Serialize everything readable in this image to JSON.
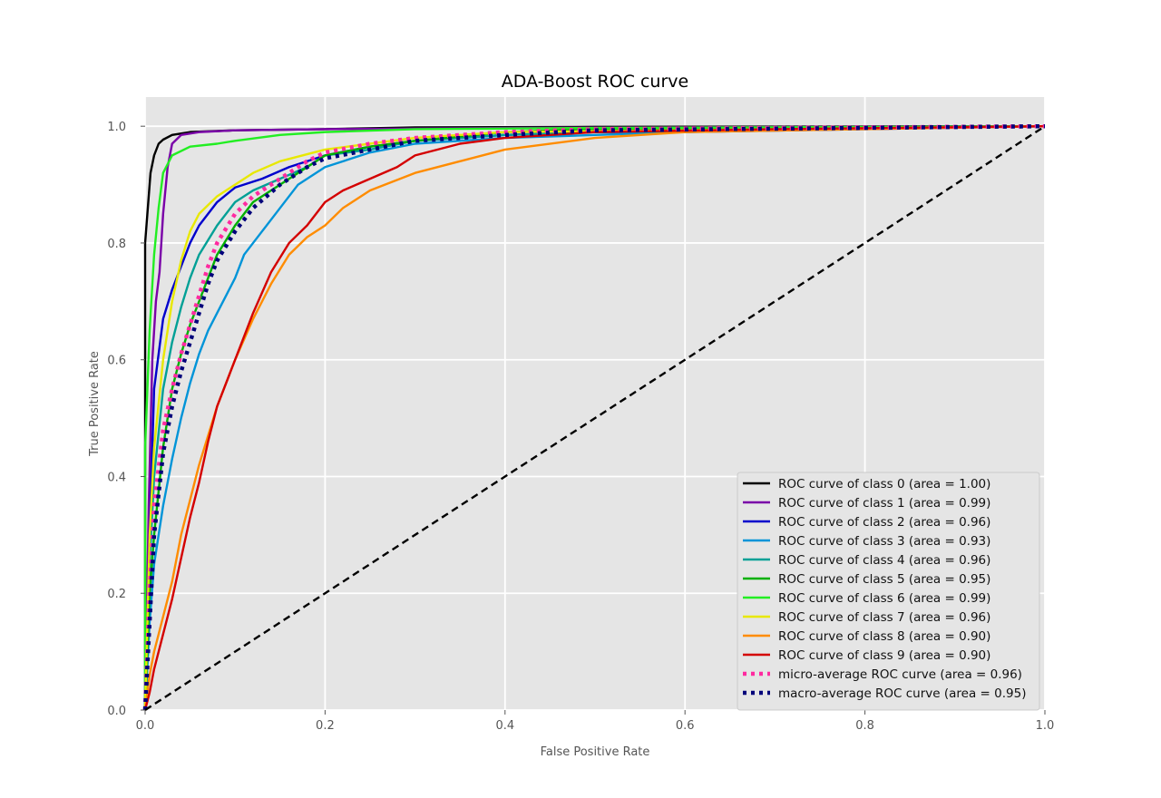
{
  "chart_data": {
    "type": "line",
    "title": "ADA-Boost ROC curve",
    "xlabel": "False Positive Rate",
    "ylabel": "True Positive Rate",
    "xlim": [
      0,
      1
    ],
    "ylim": [
      0,
      1.05
    ],
    "xticks": [
      "0.0",
      "0.2",
      "0.4",
      "0.6",
      "0.8",
      "1.0"
    ],
    "yticks": [
      "0.0",
      "0.2",
      "0.4",
      "0.6",
      "0.8",
      "1.0"
    ],
    "grid": true,
    "legend_position": "lower-right",
    "background": "#e5e5e5",
    "series": [
      {
        "name": "ROC curve of class 0 (area = 1.00)",
        "color": "#000000",
        "style": "solid",
        "points": [
          [
            0,
            0
          ],
          [
            0,
            0.8
          ],
          [
            0.003,
            0.86
          ],
          [
            0.006,
            0.92
          ],
          [
            0.01,
            0.95
          ],
          [
            0.015,
            0.97
          ],
          [
            0.02,
            0.977
          ],
          [
            0.03,
            0.985
          ],
          [
            0.05,
            0.99
          ],
          [
            0.1,
            0.993
          ],
          [
            0.2,
            0.995
          ],
          [
            0.3,
            0.998
          ],
          [
            0.5,
            0.999
          ],
          [
            1,
            1
          ]
        ]
      },
      {
        "name": "ROC curve of class 1 (area = 0.99)",
        "color": "#7a00a8",
        "style": "solid",
        "points": [
          [
            0,
            0
          ],
          [
            0.004,
            0.35
          ],
          [
            0.008,
            0.6
          ],
          [
            0.012,
            0.7
          ],
          [
            0.016,
            0.75
          ],
          [
            0.02,
            0.85
          ],
          [
            0.025,
            0.93
          ],
          [
            0.03,
            0.97
          ],
          [
            0.04,
            0.985
          ],
          [
            0.06,
            0.99
          ],
          [
            0.1,
            0.993
          ],
          [
            0.2,
            0.995
          ],
          [
            0.4,
            0.997
          ],
          [
            0.6,
            0.998
          ],
          [
            1,
            1
          ]
        ]
      },
      {
        "name": "ROC curve of class 2 (area = 0.96)",
        "color": "#0000cc",
        "style": "solid",
        "points": [
          [
            0,
            0
          ],
          [
            0.005,
            0.3
          ],
          [
            0.01,
            0.55
          ],
          [
            0.02,
            0.67
          ],
          [
            0.03,
            0.72
          ],
          [
            0.04,
            0.76
          ],
          [
            0.05,
            0.8
          ],
          [
            0.06,
            0.83
          ],
          [
            0.08,
            0.87
          ],
          [
            0.1,
            0.895
          ],
          [
            0.13,
            0.91
          ],
          [
            0.16,
            0.93
          ],
          [
            0.2,
            0.95
          ],
          [
            0.25,
            0.965
          ],
          [
            0.3,
            0.975
          ],
          [
            0.4,
            0.985
          ],
          [
            0.5,
            0.99
          ],
          [
            0.6,
            0.99
          ],
          [
            0.8,
            0.995
          ],
          [
            1,
            1
          ]
        ]
      },
      {
        "name": "ROC curve of class 3 (area = 0.93)",
        "color": "#0094d8",
        "style": "solid",
        "points": [
          [
            0,
            0
          ],
          [
            0.005,
            0.15
          ],
          [
            0.01,
            0.25
          ],
          [
            0.02,
            0.35
          ],
          [
            0.03,
            0.43
          ],
          [
            0.04,
            0.5
          ],
          [
            0.05,
            0.56
          ],
          [
            0.06,
            0.61
          ],
          [
            0.07,
            0.65
          ],
          [
            0.08,
            0.68
          ],
          [
            0.09,
            0.71
          ],
          [
            0.1,
            0.74
          ],
          [
            0.11,
            0.78
          ],
          [
            0.13,
            0.82
          ],
          [
            0.15,
            0.86
          ],
          [
            0.17,
            0.9
          ],
          [
            0.2,
            0.93
          ],
          [
            0.25,
            0.955
          ],
          [
            0.3,
            0.97
          ],
          [
            0.4,
            0.98
          ],
          [
            0.5,
            0.985
          ],
          [
            0.7,
            0.995
          ],
          [
            1,
            1
          ]
        ]
      },
      {
        "name": "ROC curve of class 4 (area = 0.96)",
        "color": "#00a096",
        "style": "solid",
        "points": [
          [
            0,
            0
          ],
          [
            0.005,
            0.25
          ],
          [
            0.01,
            0.4
          ],
          [
            0.02,
            0.55
          ],
          [
            0.03,
            0.63
          ],
          [
            0.04,
            0.69
          ],
          [
            0.05,
            0.74
          ],
          [
            0.06,
            0.78
          ],
          [
            0.08,
            0.83
          ],
          [
            0.1,
            0.87
          ],
          [
            0.12,
            0.89
          ],
          [
            0.15,
            0.91
          ],
          [
            0.18,
            0.93
          ],
          [
            0.2,
            0.95
          ],
          [
            0.25,
            0.96
          ],
          [
            0.3,
            0.975
          ],
          [
            0.4,
            0.985
          ],
          [
            0.5,
            0.99
          ],
          [
            1,
            1
          ]
        ]
      },
      {
        "name": "ROC curve of class 5 (area = 0.95)",
        "color": "#00b000",
        "style": "solid",
        "points": [
          [
            0,
            0
          ],
          [
            0.005,
            0.2
          ],
          [
            0.01,
            0.3
          ],
          [
            0.02,
            0.45
          ],
          [
            0.03,
            0.55
          ],
          [
            0.04,
            0.61
          ],
          [
            0.05,
            0.66
          ],
          [
            0.06,
            0.7
          ],
          [
            0.07,
            0.74
          ],
          [
            0.08,
            0.78
          ],
          [
            0.1,
            0.83
          ],
          [
            0.12,
            0.87
          ],
          [
            0.15,
            0.9
          ],
          [
            0.18,
            0.93
          ],
          [
            0.2,
            0.95
          ],
          [
            0.25,
            0.965
          ],
          [
            0.3,
            0.975
          ],
          [
            0.4,
            0.99
          ],
          [
            0.5,
            0.995
          ],
          [
            1,
            1
          ]
        ]
      },
      {
        "name": "ROC curve of class 6 (area = 0.99)",
        "color": "#22ee22",
        "style": "solid",
        "points": [
          [
            0,
            0
          ],
          [
            0,
            0.45
          ],
          [
            0.005,
            0.65
          ],
          [
            0.01,
            0.78
          ],
          [
            0.015,
            0.86
          ],
          [
            0.02,
            0.92
          ],
          [
            0.03,
            0.95
          ],
          [
            0.05,
            0.965
          ],
          [
            0.08,
            0.97
          ],
          [
            0.1,
            0.975
          ],
          [
            0.15,
            0.985
          ],
          [
            0.2,
            0.99
          ],
          [
            0.3,
            0.995
          ],
          [
            0.5,
            0.997
          ],
          [
            1,
            1
          ]
        ]
      },
      {
        "name": "ROC curve of class 7 (area = 0.96)",
        "color": "#e8e800",
        "style": "solid",
        "points": [
          [
            0,
            0
          ],
          [
            0.005,
            0.3
          ],
          [
            0.01,
            0.45
          ],
          [
            0.02,
            0.6
          ],
          [
            0.03,
            0.7
          ],
          [
            0.04,
            0.77
          ],
          [
            0.05,
            0.82
          ],
          [
            0.06,
            0.85
          ],
          [
            0.08,
            0.88
          ],
          [
            0.1,
            0.9
          ],
          [
            0.12,
            0.92
          ],
          [
            0.15,
            0.94
          ],
          [
            0.2,
            0.96
          ],
          [
            0.25,
            0.97
          ],
          [
            0.3,
            0.98
          ],
          [
            0.4,
            0.99
          ],
          [
            1,
            1
          ]
        ]
      },
      {
        "name": "ROC curve of class 8 (area = 0.90)",
        "color": "#ff8c00",
        "style": "solid",
        "points": [
          [
            0,
            0
          ],
          [
            0.005,
            0.06
          ],
          [
            0.01,
            0.1
          ],
          [
            0.02,
            0.16
          ],
          [
            0.03,
            0.22
          ],
          [
            0.04,
            0.3
          ],
          [
            0.05,
            0.36
          ],
          [
            0.06,
            0.42
          ],
          [
            0.07,
            0.47
          ],
          [
            0.08,
            0.52
          ],
          [
            0.1,
            0.6
          ],
          [
            0.12,
            0.67
          ],
          [
            0.14,
            0.73
          ],
          [
            0.16,
            0.78
          ],
          [
            0.18,
            0.81
          ],
          [
            0.2,
            0.83
          ],
          [
            0.22,
            0.86
          ],
          [
            0.25,
            0.89
          ],
          [
            0.3,
            0.92
          ],
          [
            0.35,
            0.94
          ],
          [
            0.4,
            0.96
          ],
          [
            0.5,
            0.98
          ],
          [
            0.6,
            0.99
          ],
          [
            0.8,
            0.995
          ],
          [
            1,
            1
          ]
        ]
      },
      {
        "name": "ROC curve of class 9 (area = 0.90)",
        "color": "#d40000",
        "style": "solid",
        "points": [
          [
            0,
            0
          ],
          [
            0.005,
            0.03
          ],
          [
            0.01,
            0.07
          ],
          [
            0.02,
            0.13
          ],
          [
            0.03,
            0.19
          ],
          [
            0.04,
            0.26
          ],
          [
            0.05,
            0.33
          ],
          [
            0.06,
            0.39
          ],
          [
            0.07,
            0.46
          ],
          [
            0.08,
            0.52
          ],
          [
            0.1,
            0.6
          ],
          [
            0.12,
            0.68
          ],
          [
            0.14,
            0.75
          ],
          [
            0.16,
            0.8
          ],
          [
            0.18,
            0.83
          ],
          [
            0.2,
            0.87
          ],
          [
            0.22,
            0.89
          ],
          [
            0.25,
            0.91
          ],
          [
            0.28,
            0.93
          ],
          [
            0.3,
            0.95
          ],
          [
            0.35,
            0.97
          ],
          [
            0.4,
            0.98
          ],
          [
            0.5,
            0.99
          ],
          [
            0.7,
            0.995
          ],
          [
            1,
            1
          ]
        ]
      },
      {
        "name": "micro-average ROC curve (area = 0.96)",
        "color": "#ff2aa0",
        "style": "dotted",
        "points": [
          [
            0,
            0
          ],
          [
            0.005,
            0.2
          ],
          [
            0.01,
            0.35
          ],
          [
            0.02,
            0.48
          ],
          [
            0.03,
            0.55
          ],
          [
            0.04,
            0.61
          ],
          [
            0.05,
            0.66
          ],
          [
            0.06,
            0.71
          ],
          [
            0.07,
            0.76
          ],
          [
            0.08,
            0.8
          ],
          [
            0.1,
            0.85
          ],
          [
            0.12,
            0.88
          ],
          [
            0.15,
            0.91
          ],
          [
            0.18,
            0.94
          ],
          [
            0.2,
            0.955
          ],
          [
            0.25,
            0.97
          ],
          [
            0.3,
            0.98
          ],
          [
            0.4,
            0.99
          ],
          [
            0.5,
            0.995
          ],
          [
            1,
            1
          ]
        ]
      },
      {
        "name": "macro-average ROC curve (area = 0.95)",
        "color": "#00007a",
        "style": "dotted",
        "points": [
          [
            0,
            0
          ],
          [
            0.005,
            0.15
          ],
          [
            0.01,
            0.3
          ],
          [
            0.02,
            0.44
          ],
          [
            0.03,
            0.52
          ],
          [
            0.04,
            0.58
          ],
          [
            0.05,
            0.63
          ],
          [
            0.06,
            0.68
          ],
          [
            0.07,
            0.73
          ],
          [
            0.08,
            0.77
          ],
          [
            0.1,
            0.82
          ],
          [
            0.12,
            0.86
          ],
          [
            0.15,
            0.9
          ],
          [
            0.18,
            0.93
          ],
          [
            0.2,
            0.945
          ],
          [
            0.25,
            0.96
          ],
          [
            0.3,
            0.975
          ],
          [
            0.4,
            0.985
          ],
          [
            0.5,
            0.993
          ],
          [
            1,
            1
          ]
        ]
      },
      {
        "name": "",
        "color": "#000000",
        "style": "dashed",
        "legend": false,
        "points": [
          [
            0,
            0
          ],
          [
            1,
            1
          ]
        ]
      }
    ]
  }
}
